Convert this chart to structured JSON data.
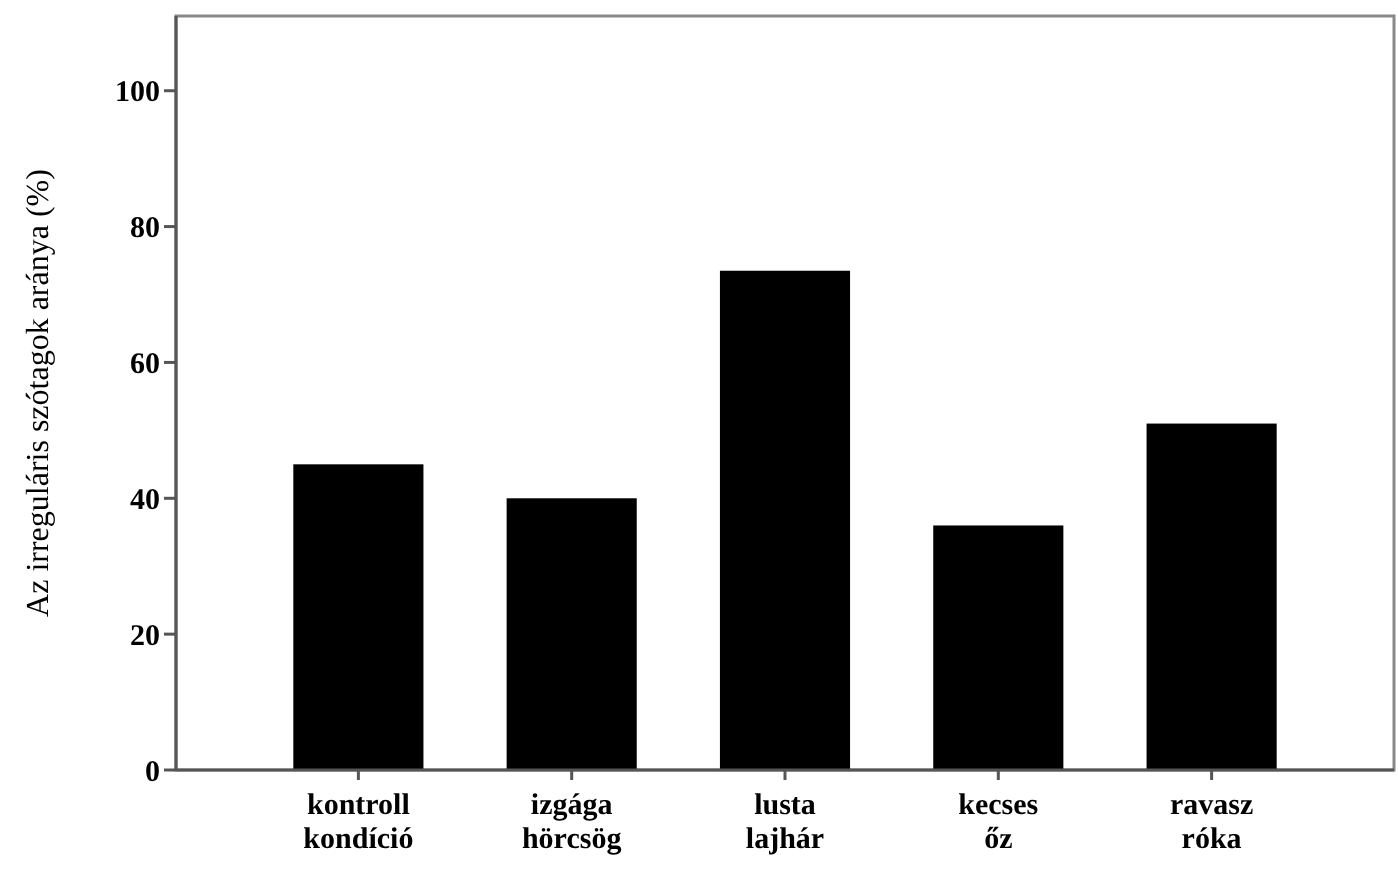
{
  "chart_data": {
    "type": "bar",
    "ylabel": "Az irreguláris szótagok aránya (%)",
    "categories": [
      "kontroll kondíció",
      "izgága hörcsög",
      "lusta lajhár",
      "kecses őz",
      "ravasz róka"
    ],
    "values": [
      45,
      40,
      73.5,
      36,
      51
    ],
    "color": "#000000",
    "ylim": [
      0,
      111
    ],
    "yticks": [
      0,
      20,
      40,
      60,
      80,
      100
    ],
    "grid": false
  }
}
